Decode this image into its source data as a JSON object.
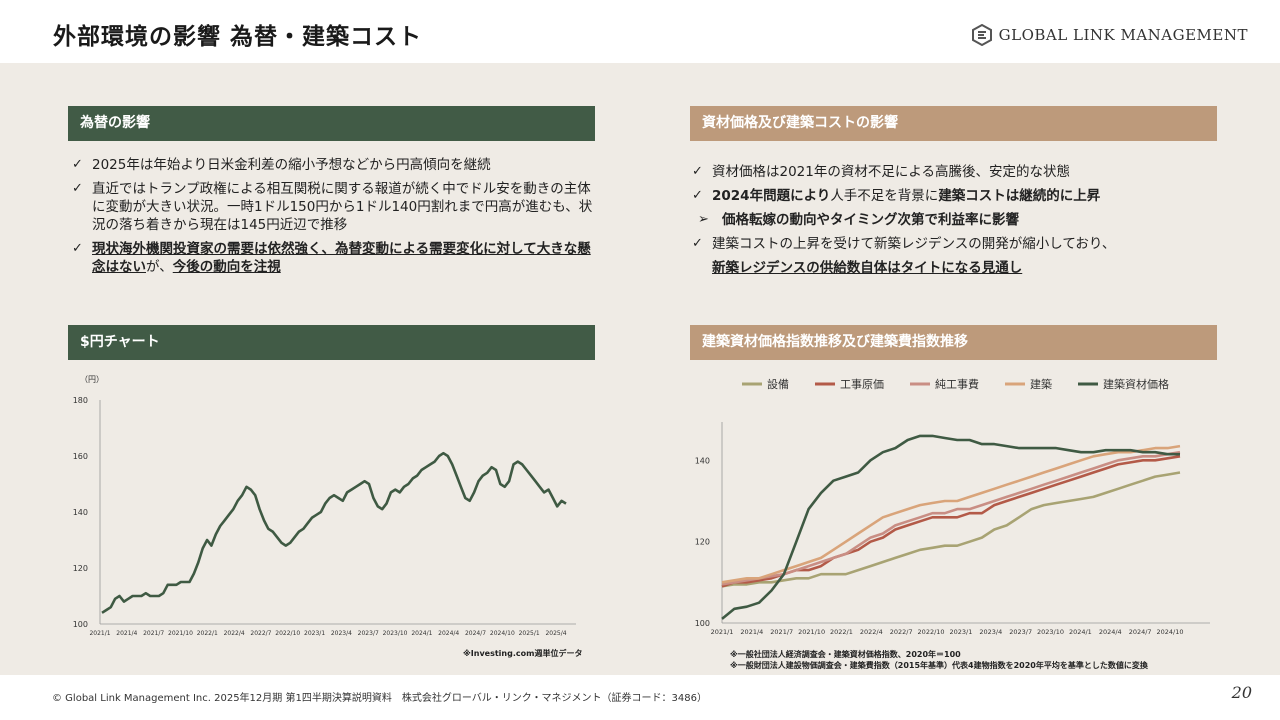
{
  "page": {
    "title": "外部環境の影響 為替・建築コスト",
    "logo": "GLOBAL LINK MANAGEMENT",
    "footer": "© Global Link Management Inc. 2025年12月期 第1四半期決算説明資料　株式会社グローバル・リンク・マネジメント（証券コード：3486）",
    "page_number": "20"
  },
  "fx": {
    "header": "為替の影響",
    "b1": "2025年は年始より日米金利差の縮小予想などから円高傾向を継続",
    "b2": "直近ではトランプ政権による相互関税に関する報道が続く中でドル安を動きの主体に変動が大きい状況。一時1ドル150円から1ドル140円割れまで円高が進むも、状況の落ち着きから現在は145円近辺で推移",
    "b3_u1": "現状海外機関投資家の需要は依然強く、為替変動による需要変化に対して大きな懸念はない",
    "b3_mid": "が、",
    "b3_u2": "今後の動向を注視"
  },
  "costs": {
    "header": "資材価格及び建築コストの影響",
    "b1": "資材価格は2021年の資材不足による高騰後、安定的な状態",
    "b2_a": "2024年問題により",
    "b2_b": "人手不足を背景に",
    "b2_c": "建築コストは継続的に上昇",
    "b3": "価格転嫁の動向やタイミング次第で利益率に影響",
    "b4": "建築コストの上昇を受けて新築レジデンスの開発が縮小しており、",
    "b5": "新築レジデンスの供給数自体はタイトになる見通し"
  },
  "usd_chart": {
    "header": "$円チャート",
    "unit": "（円）",
    "note": "※Investing.com週単位データ"
  },
  "idx_chart": {
    "header": "建築資材価格指数推移及び建築費指数推移",
    "note1": "※一般社団法人経済調査会・建築資材価格指数、2020年＝100",
    "note2": "※一般財団法人建設物価調査会・建築費指数（2015年基準）代表4建物指数を2020年平均を基準とした数値に変換"
  },
  "chart_data": [
    {
      "type": "line",
      "title": "",
      "ylabel": "（円）",
      "ylim": [
        100,
        180
      ],
      "yticks": [
        100,
        120,
        140,
        160,
        180
      ],
      "xticks": [
        "2021/1",
        "2021/4",
        "2021/7",
        "2021/10",
        "2022/1",
        "2022/4",
        "2022/7",
        "2022/10",
        "2023/1",
        "2023/4",
        "2023/7",
        "2023/10",
        "2024/1",
        "2024/4",
        "2024/7",
        "2024/10",
        "2025/1",
        "2025/4"
      ],
      "colors": {
        "line": "#3f5a43"
      },
      "series": [
        {
          "values": [
            104,
            105,
            106,
            109,
            110,
            108,
            109,
            110,
            110,
            110,
            111,
            110,
            110,
            110,
            111,
            114,
            114,
            114,
            115,
            115,
            115,
            118,
            122,
            127,
            130,
            128,
            132,
            135,
            137,
            139,
            141,
            144,
            146,
            149,
            148,
            146,
            141,
            137,
            134,
            133,
            131,
            129,
            128,
            129,
            131,
            133,
            134,
            136,
            138,
            139,
            140,
            143,
            145,
            146,
            145,
            144,
            147,
            148,
            149,
            150,
            151,
            150,
            145,
            142,
            141,
            143,
            147,
            148,
            147,
            149,
            150,
            152,
            153,
            155,
            156,
            157,
            158,
            160,
            161,
            160,
            157,
            153,
            149,
            145,
            144,
            147,
            151,
            153,
            154,
            156,
            155,
            150,
            149,
            151,
            157,
            158,
            157,
            155,
            153,
            151,
            149,
            147,
            148,
            145,
            142,
            144,
            143
          ]
        }
      ]
    },
    {
      "type": "line",
      "title": "",
      "ylim": [
        100,
        145
      ],
      "yticks": [
        100,
        120,
        140
      ],
      "xticks": [
        "2021/1",
        "2021/4",
        "2021/7",
        "2021/10",
        "2022/1",
        "2022/4",
        "2022/7",
        "2022/10",
        "2023/1",
        "2023/4",
        "2023/7",
        "2023/10",
        "2024/1",
        "2024/4",
        "2024/7",
        "2024/10"
      ],
      "series": [
        {
          "name": "設備",
          "color": "#a8a373",
          "values": [
            109,
            109.5,
            109.5,
            110,
            110,
            110.5,
            111,
            111,
            112,
            112,
            112,
            113,
            114,
            115,
            116,
            117,
            118,
            118.5,
            119,
            119,
            120,
            121,
            123,
            124,
            126,
            128,
            129,
            129.5,
            130,
            130.5,
            131,
            132,
            133,
            134,
            135,
            136,
            136.5,
            137
          ]
        },
        {
          "name": "工事原価",
          "color": "#b35a48",
          "values": [
            109,
            110,
            110,
            110.5,
            111,
            112,
            113,
            113,
            114,
            116,
            117,
            118,
            120,
            121,
            123,
            124,
            125,
            126,
            126,
            126,
            127,
            127,
            129,
            130,
            131,
            132,
            133,
            134,
            135,
            136,
            137,
            138,
            139,
            139.5,
            140,
            140,
            140.5,
            141
          ]
        },
        {
          "name": "純工事費",
          "color": "#c98e84",
          "values": [
            109.5,
            110,
            110.5,
            111,
            111.5,
            112,
            113,
            114,
            115,
            116,
            117,
            119,
            121,
            122,
            124,
            125,
            126,
            127,
            127,
            128,
            128,
            129,
            130,
            131,
            132,
            133,
            134,
            135,
            136,
            137,
            138,
            139,
            140,
            140.5,
            141,
            141,
            141.5,
            142
          ]
        },
        {
          "name": "建築",
          "color": "#d9a47a",
          "values": [
            110,
            110.5,
            111,
            111,
            112,
            113,
            114,
            115,
            116,
            118,
            120,
            122,
            124,
            126,
            127,
            128,
            129,
            129.5,
            130,
            130,
            131,
            132,
            133,
            134,
            135,
            136,
            137,
            138,
            139,
            140,
            141,
            141.5,
            142,
            142,
            142.5,
            143,
            143,
            143.5
          ]
        },
        {
          "name": "建築資材価格",
          "color": "#3f5a43",
          "values": [
            101,
            103.5,
            104,
            105,
            108,
            112,
            120,
            128,
            132,
            135,
            136,
            137,
            140,
            142,
            143,
            145,
            146,
            146,
            145.5,
            145,
            145,
            144,
            144,
            143.5,
            143,
            143,
            143,
            143,
            142.5,
            142,
            142,
            142.5,
            142.5,
            142.5,
            142,
            142,
            141.5,
            141.5
          ]
        }
      ]
    }
  ]
}
